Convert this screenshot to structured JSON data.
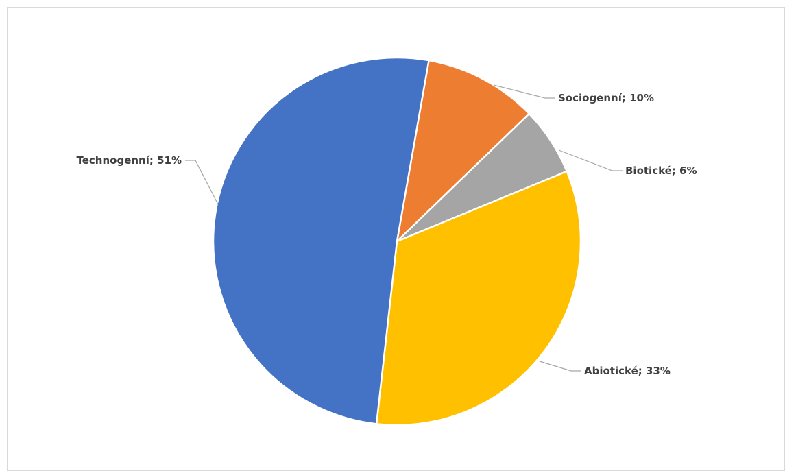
{
  "chart_data": {
    "type": "pie",
    "title": "",
    "start_angle": 10,
    "slices": [
      {
        "label": "Sociogenní; 10%",
        "category": "Sociogenní",
        "value": 10,
        "color": "#ED7D31"
      },
      {
        "label": "Biotické; 6%",
        "category": "Biotické",
        "value": 6,
        "color": "#A5A5A5"
      },
      {
        "label": "Abiotické; 33%",
        "category": "Abiotické",
        "value": 33,
        "color": "#FFC000"
      },
      {
        "label": "Technogenní; 51%",
        "category": "Technogenní",
        "value": 51,
        "color": "#4472C4"
      }
    ],
    "legend": "none",
    "data_labels": "outside-with-leader-lines"
  }
}
